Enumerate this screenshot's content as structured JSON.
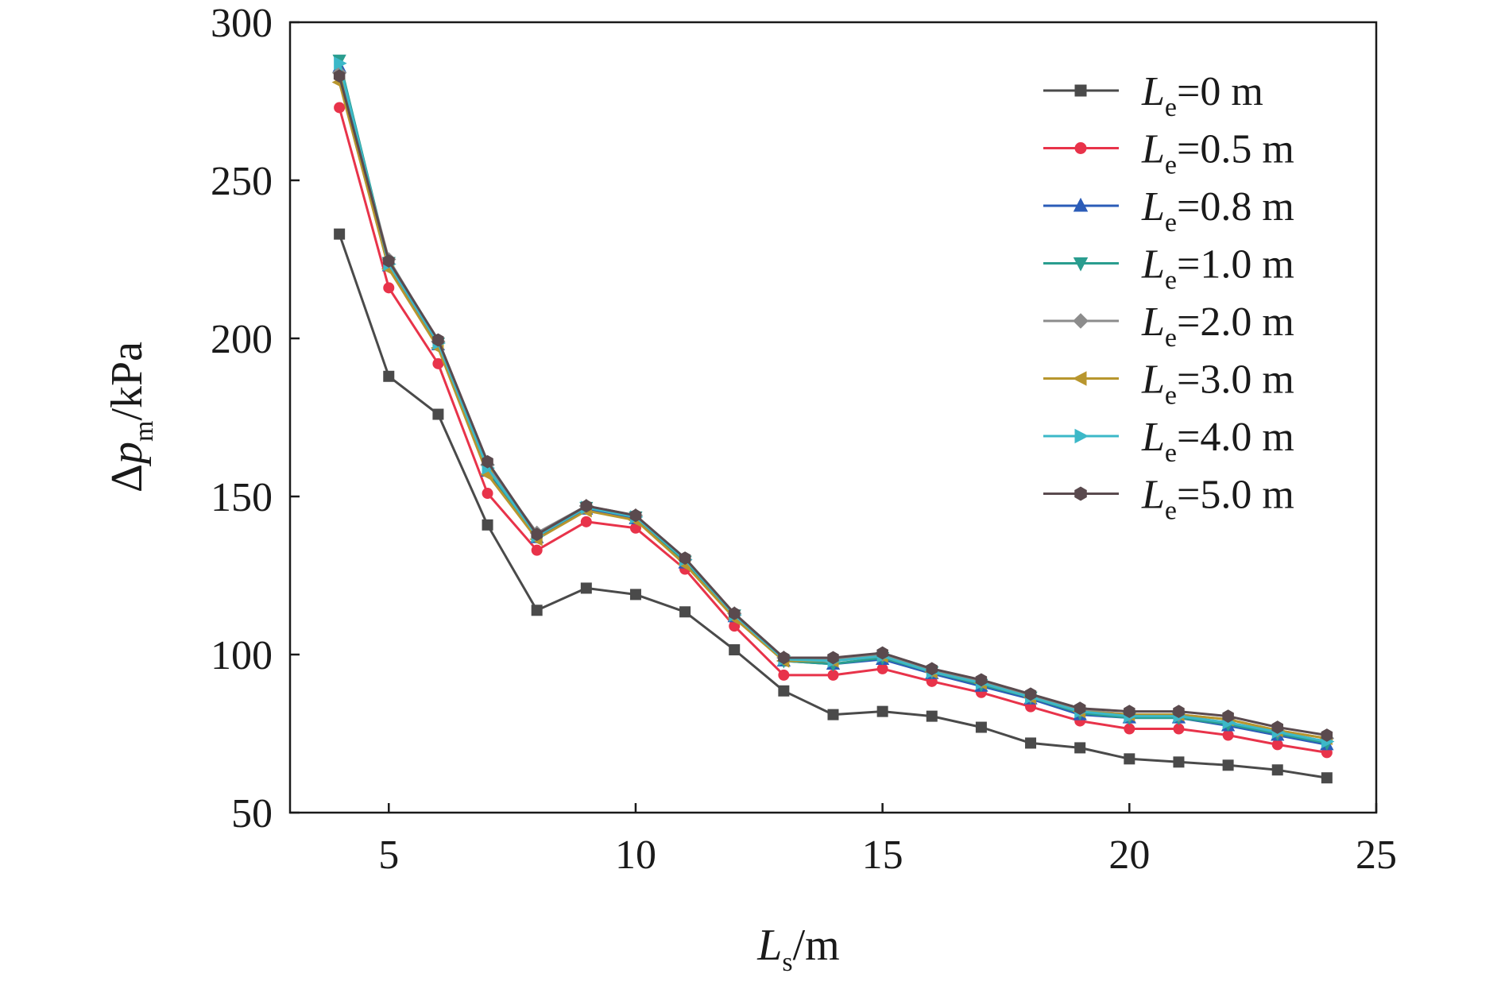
{
  "chart_data": {
    "type": "line",
    "x_axis": {
      "symbol": "L",
      "subscript": "s",
      "unit": "/m",
      "ticks": [
        "5",
        "10",
        "15",
        "20",
        "25"
      ],
      "range": [
        3,
        25
      ]
    },
    "y_axis": {
      "prefix": "Δ",
      "symbol": "p",
      "subscript": "m",
      "unit": "/kPa",
      "ticks": [
        "50",
        "100",
        "150",
        "200",
        "250",
        "300"
      ],
      "range": [
        50,
        300
      ]
    },
    "grid": false,
    "legend_position": "top-right",
    "x": [
      4,
      5,
      6,
      7,
      8,
      9,
      10,
      11,
      12,
      13,
      14,
      15,
      16,
      17,
      18,
      19,
      20,
      21,
      22,
      23,
      24
    ],
    "series": [
      {
        "symbol": "L",
        "subscript": "e",
        "value_label": "=0 m",
        "color": "#4a4a4a",
        "marker": "square",
        "values": [
          233,
          188,
          176,
          141,
          114,
          121,
          119,
          113.5,
          101.5,
          88.5,
          81,
          82,
          80.5,
          77,
          72,
          70.5,
          67,
          66,
          65,
          63.5,
          61
        ]
      },
      {
        "symbol": "L",
        "subscript": "e",
        "value_label": "=0.5 m",
        "color": "#e8334a",
        "marker": "circle",
        "values": [
          273,
          216,
          192,
          151,
          133,
          142,
          140,
          127,
          109,
          93.5,
          93.5,
          95.5,
          91.5,
          88,
          83.5,
          79,
          76.5,
          76.5,
          74.5,
          71.5,
          69
        ]
      },
      {
        "symbol": "L",
        "subscript": "e",
        "value_label": "=0.8 m",
        "color": "#2b5cb8",
        "marker": "triangle-up",
        "values": [
          286,
          223,
          198,
          158,
          137,
          146,
          143,
          129,
          112,
          98,
          97,
          98.5,
          94,
          90,
          86,
          81,
          80,
          80,
          77.5,
          74.5,
          71.5
        ]
      },
      {
        "symbol": "L",
        "subscript": "e",
        "value_label": "=1.0 m",
        "color": "#2a9d8f",
        "marker": "triangle-down",
        "values": [
          288,
          224,
          198.5,
          158.5,
          137.5,
          146.5,
          143.5,
          129.5,
          112.5,
          98,
          97,
          99,
          94.5,
          90.5,
          86.5,
          81.5,
          80,
          80,
          78,
          75,
          72
        ]
      },
      {
        "symbol": "L",
        "subscript": "e",
        "value_label": "=2.0 m",
        "color": "#8c8c8c",
        "marker": "diamond",
        "values": [
          284,
          225,
          199,
          160,
          138.5,
          147,
          144,
          130,
          113,
          99,
          98.5,
          100,
          95,
          91.5,
          87,
          82.5,
          81,
          81,
          79.5,
          76,
          73.5
        ]
      },
      {
        "symbol": "L",
        "subscript": "e",
        "value_label": "=3.0 m",
        "color": "#b8962e",
        "marker": "triangle-left",
        "values": [
          281,
          222,
          197,
          157,
          136.5,
          145.5,
          142.5,
          128.5,
          111.5,
          98,
          98,
          99.5,
          94.5,
          91,
          86.5,
          82,
          81,
          81,
          79.5,
          76,
          73.5
        ]
      },
      {
        "symbol": "L",
        "subscript": "e",
        "value_label": "=4.0 m",
        "color": "#3cb8c8",
        "marker": "triangle-right",
        "values": [
          287,
          223.5,
          198.5,
          159,
          137.5,
          146.5,
          143.5,
          130,
          112.5,
          98.5,
          98,
          99.5,
          94.5,
          91,
          86.5,
          82,
          80.5,
          80.5,
          78.5,
          75.5,
          72.5
        ]
      },
      {
        "symbol": "L",
        "subscript": "e",
        "value_label": "=5.0 m",
        "color": "#5a4a4e",
        "marker": "hexagon",
        "values": [
          283,
          224.5,
          199.5,
          161,
          138,
          147,
          144,
          130.5,
          113,
          99,
          99,
          100.5,
          95.5,
          92,
          87.5,
          83,
          82,
          82,
          80.5,
          77,
          74.5
        ]
      }
    ]
  }
}
